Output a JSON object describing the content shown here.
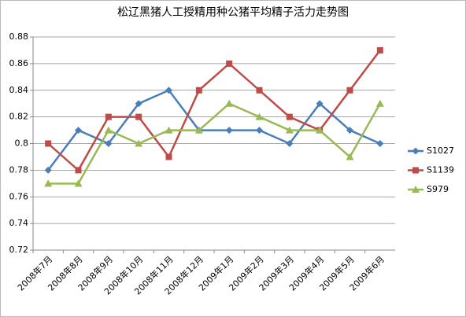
{
  "chart_data": {
    "type": "line",
    "title": "松辽黑猪人工授精用种公猪平均精子活力走势图",
    "categories": [
      "2008年7月",
      "2008年8月",
      "2008年9月",
      "2008年10月",
      "2008年11月",
      "2008年12月",
      "2009年1月",
      "2009年2月",
      "2009年3月",
      "2009年4月",
      "2009年5月",
      "2009年6月"
    ],
    "series": [
      {
        "name": "S1027",
        "color": "#4a7ebb",
        "marker": "diamond",
        "values": [
          0.78,
          0.81,
          0.8,
          0.83,
          0.84,
          0.81,
          0.81,
          0.81,
          0.8,
          0.83,
          0.81,
          0.8
        ]
      },
      {
        "name": "S1139",
        "color": "#be4b48",
        "marker": "square",
        "values": [
          0.8,
          0.78,
          0.82,
          0.82,
          0.79,
          0.84,
          0.86,
          0.84,
          0.82,
          0.81,
          0.84,
          0.87
        ]
      },
      {
        "name": "S979",
        "color": "#98b954",
        "marker": "triangle",
        "values": [
          0.77,
          0.77,
          0.81,
          0.8,
          0.81,
          0.81,
          0.83,
          0.82,
          0.81,
          0.81,
          0.79,
          0.83
        ]
      }
    ],
    "ylim": [
      0.72,
      0.88
    ],
    "yticks": [
      0.72,
      0.74,
      0.76,
      0.78,
      0.8,
      0.82,
      0.84,
      0.86,
      0.88
    ],
    "grid": true,
    "legend": "right"
  }
}
